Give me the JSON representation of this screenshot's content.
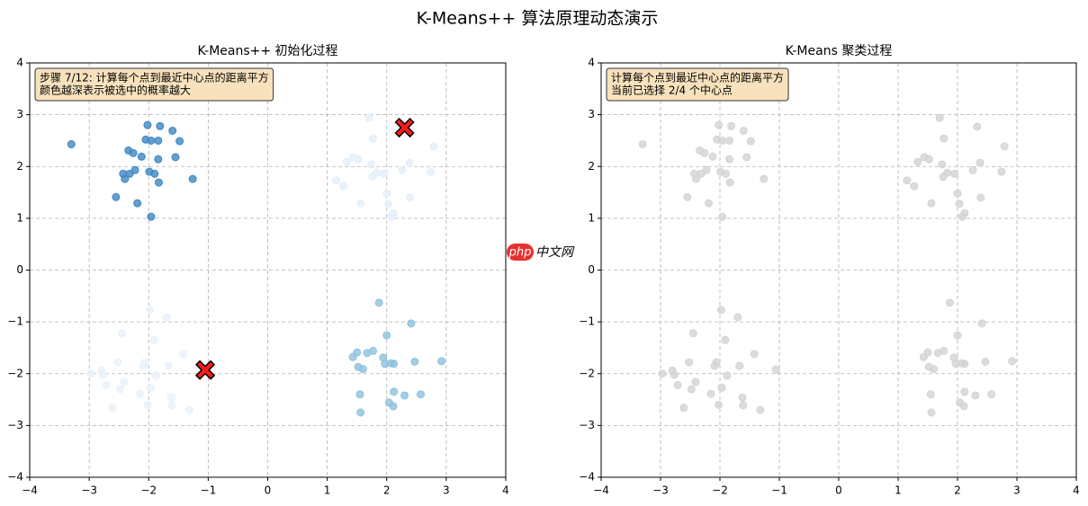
{
  "title": "K-Means++ 算法原理动态演示",
  "watermark": [
    "php",
    "中文网"
  ],
  "chart_data": [
    {
      "type": "scatter",
      "title": "K-Means++ 初始化过程",
      "annotation": [
        "步骤 7/12: 计算每个点到最近中心点的距离平方",
        "颜色越深表示被选中的概率越大"
      ],
      "xlim": [
        -4,
        4
      ],
      "ylim": [
        -4,
        4
      ],
      "xticks": [
        {
          "value": -4,
          "label": "−4"
        },
        {
          "value": -3,
          "label": "−3"
        },
        {
          "value": -2,
          "label": "−2"
        },
        {
          "value": -1,
          "label": "−1"
        },
        0,
        1,
        2,
        3,
        4
      ],
      "yticks": [
        {
          "value": -4,
          "label": "−4"
        },
        {
          "value": -3,
          "label": "−3"
        },
        {
          "value": -2,
          "label": "−2"
        },
        {
          "value": -1,
          "label": "−1"
        },
        0,
        1,
        2,
        3,
        4
      ],
      "grid": true,
      "series": [
        {
          "color": "#3f87c2",
          "marker": "o",
          "x": [
            -3.3,
            -2.02,
            -1.81,
            -1.6,
            -2.34,
            -2.26,
            -2.05,
            -1.96,
            -1.84,
            -1.48,
            -2.12,
            -1.84,
            -1.55,
            -2.43,
            -2.32,
            -2.23,
            -1.99,
            -1.9,
            -2.4,
            -1.83,
            -1.26,
            -2.55,
            -2.19,
            -1.96
          ],
          "y": [
            2.43,
            2.8,
            2.78,
            2.69,
            2.31,
            2.26,
            2.52,
            2.5,
            2.5,
            2.49,
            2.19,
            2.14,
            2.18,
            1.86,
            1.86,
            1.93,
            1.9,
            1.86,
            1.76,
            1.69,
            1.76,
            1.41,
            1.29,
            1.03
          ]
        },
        {
          "color": "#8fc0df",
          "marker": "o",
          "x": [
            1.87,
            2.41,
            2.0,
            2.92,
            2.47,
            1.43,
            1.5,
            1.67,
            1.77,
            1.94,
            2.07,
            2.12,
            1.97,
            1.6,
            1.52,
            1.55,
            2.12,
            2.3,
            2.57,
            2.04,
            2.11,
            1.56
          ],
          "y": [
            -0.63,
            -1.03,
            -1.26,
            -1.76,
            -1.77,
            -1.68,
            -1.59,
            -1.6,
            -1.56,
            -1.69,
            -1.8,
            -1.81,
            -1.81,
            -1.91,
            -1.87,
            -2.4,
            -2.35,
            -2.42,
            -2.4,
            -2.56,
            -2.63,
            -2.75
          ]
        },
        {
          "color": "#e4eff9",
          "marker": "o",
          "x": [
            1.7,
            1.77,
            2.33,
            2.79,
            1.33,
            1.44,
            1.52,
            1.74,
            2.38,
            2.26,
            1.83,
            1.95,
            1.76,
            1.15,
            1.27,
            2.74,
            2.0,
            2.39,
            2.03,
            1.56,
            2.12,
            2.08
          ],
          "y": [
            2.94,
            2.54,
            2.77,
            2.39,
            2.09,
            2.18,
            2.14,
            2.04,
            2.07,
            1.93,
            1.88,
            1.86,
            1.8,
            1.73,
            1.62,
            1.9,
            1.48,
            1.4,
            1.28,
            1.29,
            1.1,
            1.03
          ]
        },
        {
          "color": "#e8f1fa",
          "marker": "o",
          "x": [
            -1.98,
            -1.7,
            -2.45,
            -1.91,
            -1.42,
            -2.52,
            -1.67,
            -2.06,
            -2.09,
            -1.06,
            -2.97,
            -2.8,
            -2.77,
            -1.88,
            -2.71,
            -2.41,
            -2.48,
            -2.15,
            -1.97,
            -1.62,
            -2.61,
            -2.02,
            -1.61,
            -1.32
          ],
          "y": [
            -0.77,
            -0.91,
            -1.22,
            -1.35,
            -1.62,
            -1.78,
            -1.85,
            -1.78,
            -1.85,
            -1.92,
            -2.0,
            -1.94,
            -2.02,
            -2.04,
            -2.22,
            -2.16,
            -2.3,
            -2.39,
            -2.27,
            -2.46,
            -2.66,
            -2.6,
            -2.61,
            -2.7
          ]
        },
        {
          "color": "#ff1a1a",
          "marker": "X",
          "x": [
            2.3,
            -1.05
          ],
          "y": [
            2.75,
            -1.93
          ]
        }
      ]
    },
    {
      "type": "scatter",
      "title": "K-Means 聚类过程",
      "annotation": [
        "计算每个点到最近中心点的距离平方",
        "当前已选择 2/4 个中心点"
      ],
      "xlim": [
        -4,
        4
      ],
      "ylim": [
        -4,
        4
      ],
      "xticks": [
        {
          "value": -4,
          "label": "−4"
        },
        {
          "value": -3,
          "label": "−3"
        },
        {
          "value": -2,
          "label": "−2"
        },
        {
          "value": -1,
          "label": "−1"
        },
        0,
        1,
        2,
        3,
        4
      ],
      "yticks": [
        {
          "value": -4,
          "label": "−4"
        },
        {
          "value": -3,
          "label": "−3"
        },
        {
          "value": -2,
          "label": "−2"
        },
        {
          "value": -1,
          "label": "−1"
        },
        0,
        1,
        2,
        3,
        4
      ],
      "grid": true,
      "series": [
        {
          "color": "#d3d3d3",
          "marker": "o",
          "x": [
            -3.3,
            -2.02,
            -1.81,
            -1.6,
            -2.34,
            -2.26,
            -2.05,
            -1.96,
            -1.84,
            -1.48,
            -2.12,
            -1.84,
            -1.55,
            -2.43,
            -2.32,
            -2.23,
            -1.99,
            -1.9,
            -2.4,
            -1.83,
            -1.26,
            -2.55,
            -2.19,
            -1.96,
            1.87,
            2.41,
            2.0,
            2.92,
            2.47,
            1.43,
            1.5,
            1.67,
            1.77,
            1.94,
            2.07,
            2.12,
            1.97,
            1.6,
            1.52,
            1.55,
            2.12,
            2.3,
            2.57,
            2.04,
            2.11,
            1.56,
            1.7,
            1.77,
            2.33,
            2.79,
            1.33,
            1.44,
            1.52,
            1.74,
            2.38,
            2.26,
            1.83,
            1.95,
            1.76,
            1.15,
            1.27,
            2.74,
            2.0,
            2.39,
            2.03,
            1.56,
            2.12,
            2.08,
            -1.98,
            -1.7,
            -2.45,
            -1.91,
            -1.42,
            -2.52,
            -1.67,
            -2.06,
            -2.09,
            -1.06,
            -2.97,
            -2.8,
            -2.77,
            -1.88,
            -2.71,
            -2.41,
            -2.48,
            -2.15,
            -1.97,
            -1.62,
            -2.61,
            -2.02,
            -1.61,
            -1.32
          ],
          "y": [
            2.43,
            2.8,
            2.78,
            2.69,
            2.31,
            2.26,
            2.52,
            2.5,
            2.5,
            2.49,
            2.19,
            2.14,
            2.18,
            1.86,
            1.86,
            1.93,
            1.9,
            1.86,
            1.76,
            1.69,
            1.76,
            1.41,
            1.29,
            1.03,
            -0.63,
            -1.03,
            -1.26,
            -1.76,
            -1.77,
            -1.68,
            -1.59,
            -1.6,
            -1.56,
            -1.69,
            -1.8,
            -1.81,
            -1.81,
            -1.91,
            -1.87,
            -2.4,
            -2.35,
            -2.42,
            -2.4,
            -2.56,
            -2.63,
            -2.75,
            2.94,
            2.54,
            2.77,
            2.39,
            2.09,
            2.18,
            2.14,
            2.04,
            2.07,
            1.93,
            1.88,
            1.86,
            1.8,
            1.73,
            1.62,
            1.9,
            1.48,
            1.4,
            1.28,
            1.29,
            1.1,
            1.03,
            -0.77,
            -0.91,
            -1.22,
            -1.35,
            -1.62,
            -1.78,
            -1.85,
            -1.78,
            -1.85,
            -1.92,
            -2.0,
            -1.94,
            -2.02,
            -2.04,
            -2.22,
            -2.16,
            -2.3,
            -2.39,
            -2.27,
            -2.46,
            -2.66,
            -2.6,
            -2.61,
            -2.7
          ]
        }
      ]
    }
  ]
}
